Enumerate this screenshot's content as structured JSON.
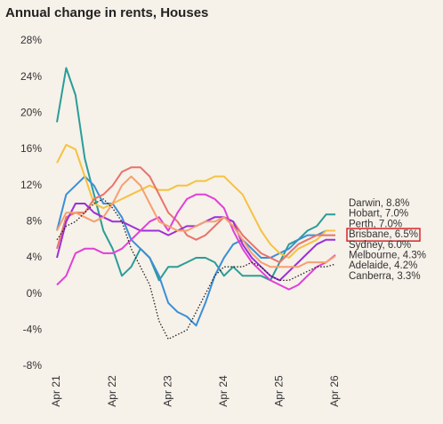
{
  "chart_data": {
    "type": "line",
    "title": "Annual change in rents, Houses",
    "categories": [
      "Apr 21",
      null,
      null,
      null,
      null,
      null,
      "Apr 22",
      null,
      null,
      null,
      null,
      null,
      "Apr 23",
      null,
      null,
      null,
      null,
      null,
      "Apr 24",
      null,
      null,
      null,
      null,
      null,
      "Apr 25",
      null,
      null,
      null,
      null,
      null,
      "Apr 26"
    ],
    "ylim": [
      -8,
      28
    ],
    "yticks": [
      {
        "value": -8,
        "label": "-8%"
      },
      {
        "value": -4,
        "label": "-4%"
      },
      {
        "value": 0,
        "label": "0%"
      },
      {
        "value": 4,
        "label": "4%"
      },
      {
        "value": 8,
        "label": "8%"
      },
      {
        "value": 12,
        "label": "12%"
      },
      {
        "value": 16,
        "label": "16%"
      },
      {
        "value": 20,
        "label": "20%"
      },
      {
        "value": 24,
        "label": "24%"
      },
      {
        "value": 28,
        "label": "28%"
      }
    ],
    "highlighted_series": 3,
    "series": [
      {
        "name": "Darwin, 8.8%",
        "color": "#2a9d98",
        "style": "solid",
        "values": [
          19,
          25,
          22,
          15,
          11,
          7,
          5,
          2,
          3,
          5,
          4,
          1.5,
          3,
          3,
          3.5,
          4,
          4,
          3.5,
          2,
          3,
          2,
          2,
          2,
          1.5,
          3.5,
          5.5,
          6,
          7,
          7.5,
          8.8,
          8.8
        ]
      },
      {
        "name": "Hobart, 7.0%",
        "color": "#3a8fd6",
        "style": "solid",
        "values": [
          7,
          11,
          12,
          13,
          12,
          10,
          10,
          8.5,
          6,
          5,
          4,
          2,
          -1,
          -2,
          -2.5,
          -3.5,
          -1,
          2,
          4,
          5.5,
          6,
          5,
          4,
          4,
          4.5,
          5,
          6,
          6.5,
          6.5,
          7,
          7.0
        ]
      },
      {
        "name": "Perth, 7.0%",
        "color": "#f5c242",
        "style": "solid",
        "values": [
          14.5,
          16.5,
          16,
          13,
          10,
          9.5,
          10,
          10.5,
          11,
          11.5,
          12,
          11.5,
          11.5,
          12,
          12,
          12.5,
          12.5,
          13,
          13,
          12,
          11,
          9,
          7,
          5.5,
          4.5,
          4,
          5,
          5.5,
          6,
          7,
          7.0
        ]
      },
      {
        "name": "Brisbane, 6.5%",
        "color": "#e8736b",
        "style": "solid",
        "values": [
          5,
          8.5,
          9,
          9,
          10.5,
          11,
          12,
          13.5,
          14,
          14,
          13,
          11,
          9,
          8,
          6.5,
          6,
          6.5,
          7.5,
          8.5,
          8,
          6.5,
          5.5,
          4.5,
          4,
          3.5,
          4.5,
          5.5,
          6,
          6.5,
          6.5,
          6.5
        ]
      },
      {
        "name": "Sydney, 6.0%",
        "color": "#9b30d9",
        "style": "solid",
        "values": [
          4,
          8,
          10,
          10,
          9,
          8.5,
          8,
          8,
          7.5,
          7,
          7,
          7,
          6.5,
          7,
          7.5,
          7.5,
          8,
          8.5,
          8.5,
          8,
          5.5,
          4,
          3,
          2,
          1.5,
          2.5,
          3.5,
          4.5,
          5.5,
          6,
          6.0
        ]
      },
      {
        "name": "Melbourne, 4.3%",
        "color": "#e040d8",
        "style": "solid",
        "values": [
          1,
          2,
          4.5,
          5,
          5,
          4.5,
          4.5,
          5,
          6,
          7,
          8,
          8.5,
          7,
          9,
          10.5,
          11,
          11,
          10.5,
          9.5,
          7,
          5,
          3.5,
          2.5,
          1.5,
          1,
          0.5,
          1,
          2,
          3,
          3.5,
          4.3
        ]
      },
      {
        "name": "Adelaide, 4.2%",
        "color": "#f5a070",
        "style": "solid",
        "values": [
          7,
          9,
          9,
          8.5,
          8,
          8.5,
          10,
          12,
          13,
          12,
          10,
          8,
          7.5,
          7,
          7,
          7.5,
          8,
          8,
          8.5,
          7.5,
          6,
          4.5,
          3.5,
          3,
          3,
          3,
          3,
          3.5,
          3.5,
          3.5,
          4.2
        ]
      },
      {
        "name": "Canberra, 3.3%",
        "color": "#222222",
        "style": "dotted",
        "values": [
          6,
          7.5,
          8,
          9,
          10,
          10.5,
          9.5,
          8,
          5,
          3,
          1,
          -3,
          -5,
          -4.5,
          -4,
          -2,
          0,
          2,
          3,
          3,
          3,
          3.5,
          3,
          2,
          1.5,
          1.5,
          2,
          2.5,
          3,
          3,
          3.3
        ]
      }
    ]
  }
}
